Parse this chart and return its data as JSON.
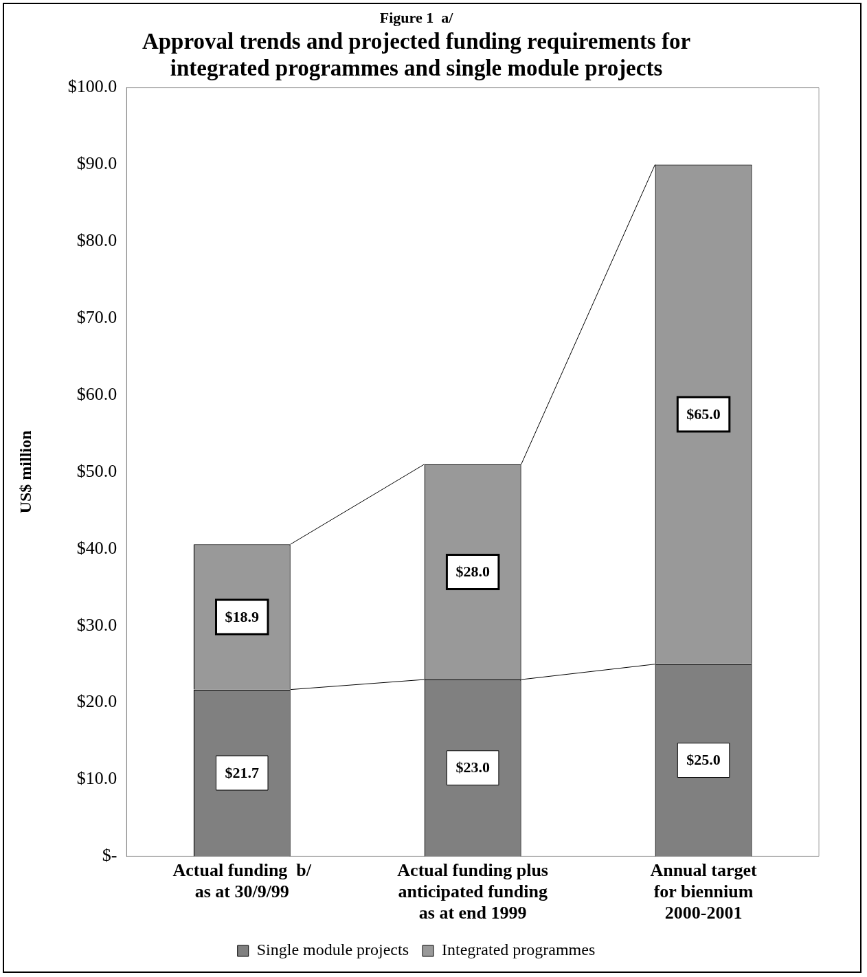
{
  "chart_data": {
    "type": "bar",
    "stacked": true,
    "title": "Figure 1  a/",
    "subtitle": "Approval trends and projected funding requirements for\nintegrated programmes and single module projects",
    "ylabel": "US$ million",
    "categories": [
      "Actual funding  b/\nas at 30/9/99",
      "Actual funding plus\nanticipated funding\nas at end 1999",
      "Annual target\nfor biennium\n2000-2001"
    ],
    "series": [
      {
        "name": "Single module projects",
        "color": "#808080",
        "values": [
          21.7,
          23.0,
          25.0
        ],
        "value_labels": [
          "$21.7",
          "$23.0",
          "$25.0"
        ]
      },
      {
        "name": "Integrated programmes",
        "color": "#999999",
        "values": [
          18.9,
          28.0,
          65.0
        ],
        "value_labels": [
          "$18.9",
          "$28.0",
          "$65.0"
        ]
      }
    ],
    "ylim": [
      0,
      100
    ],
    "yticks": [
      {
        "value": 0,
        "label": "$-"
      },
      {
        "value": 10,
        "label": "$10.0"
      },
      {
        "value": 20,
        "label": "$20.0"
      },
      {
        "value": 30,
        "label": "$30.0"
      },
      {
        "value": 40,
        "label": "$40.0"
      },
      {
        "value": 50,
        "label": "$50.0"
      },
      {
        "value": 60,
        "label": "$60.0"
      },
      {
        "value": 70,
        "label": "$70.0"
      },
      {
        "value": 80,
        "label": "$80.0"
      },
      {
        "value": 90,
        "label": "$90.0"
      },
      {
        "value": 100,
        "label": "$100.0"
      }
    ],
    "legend": "bottom"
  }
}
